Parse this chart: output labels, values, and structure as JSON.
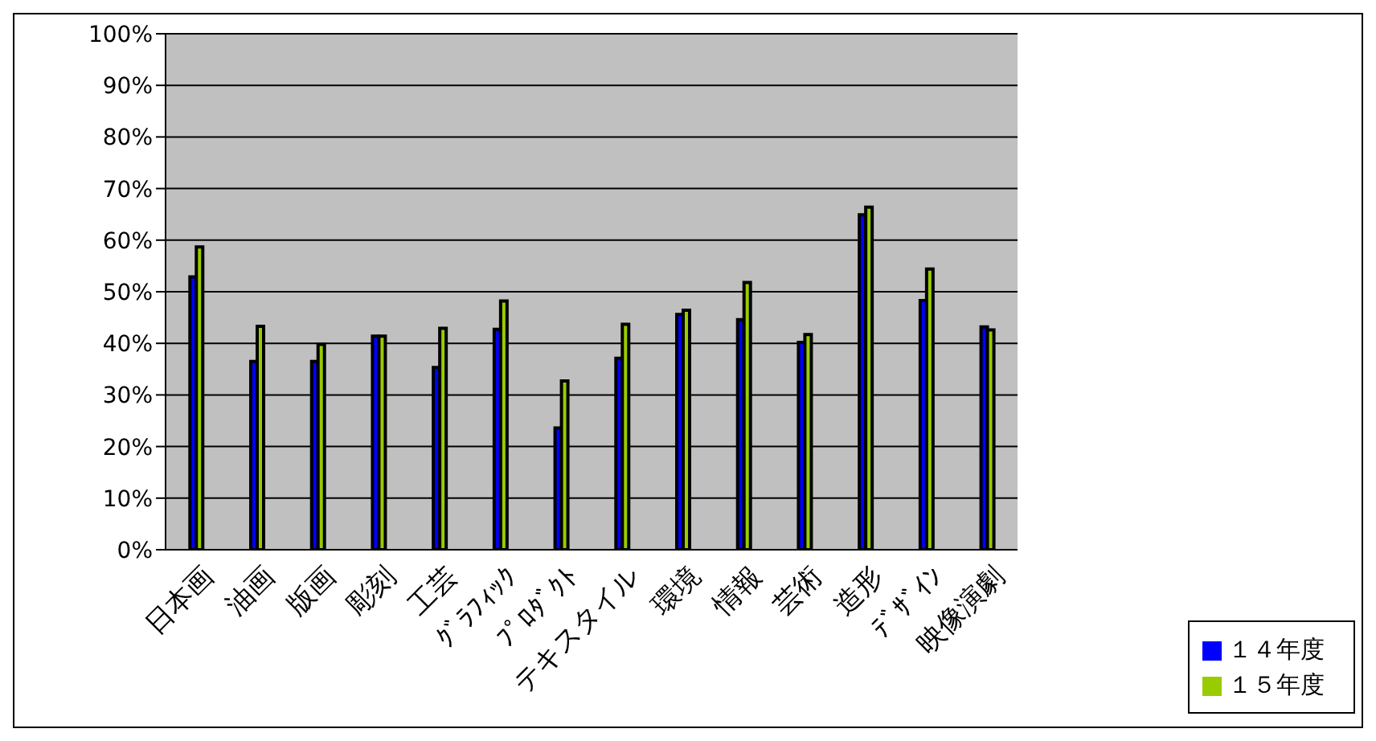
{
  "chart_data": {
    "type": "bar",
    "categories": [
      "日本画",
      "油画",
      "版画",
      "彫刻",
      "工芸",
      "ｸﾞﾗﾌｨｯｸ",
      "ﾌﾟﾛﾀﾞｸﾄ",
      "テキスタイル",
      "環境",
      "情報",
      "芸術",
      "造形",
      "ﾃﾞｻﾞｲﾝ",
      "映像演劇"
    ],
    "series": [
      {
        "name": "１４年度",
        "color": "#0000ff",
        "values": [
          52.9,
          36.5,
          36.5,
          41.4,
          35.3,
          42.7,
          23.6,
          37.1,
          45.6,
          44.6,
          40.2,
          64.9,
          48.3,
          43.2
        ]
      },
      {
        "name": "１５年度",
        "color": "#99cc00",
        "values": [
          58.7,
          43.3,
          39.8,
          41.4,
          42.9,
          48.2,
          32.7,
          43.7,
          46.4,
          51.8,
          41.7,
          66.4,
          54.4,
          42.6
        ]
      }
    ],
    "ylim": [
      0,
      100
    ],
    "yticks": [
      {
        "value": 0,
        "label": "0%"
      },
      {
        "value": 10,
        "label": "10%"
      },
      {
        "value": 20,
        "label": "20%"
      },
      {
        "value": 30,
        "label": "30%"
      },
      {
        "value": 40,
        "label": "40%"
      },
      {
        "value": 50,
        "label": "50%"
      },
      {
        "value": 60,
        "label": "60%"
      },
      {
        "value": 70,
        "label": "70%"
      },
      {
        "value": 80,
        "label": "80%"
      },
      {
        "value": 90,
        "label": "90%"
      },
      {
        "value": 100,
        "label": "100%"
      }
    ],
    "grid": "y",
    "legend": "bottom right"
  }
}
